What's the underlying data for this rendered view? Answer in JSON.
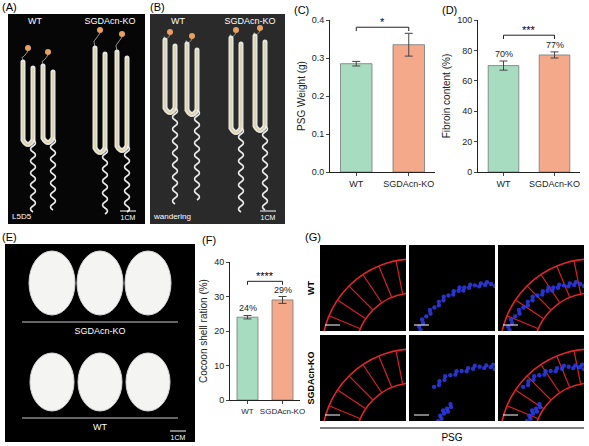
{
  "panels": {
    "A": {
      "label": "(A)",
      "columns": [
        "WT",
        "SGDAcn-KO"
      ],
      "stage": "L5D5",
      "scale": "1CM"
    },
    "B": {
      "label": "(B)",
      "columns": [
        "WT",
        "SGDAcn-KO"
      ],
      "stage": "wandering",
      "scale": "1CM"
    },
    "E": {
      "label": "(E)",
      "rows": [
        "SGDAcn-KO",
        "WT"
      ],
      "scale": "1CM"
    },
    "G": {
      "label": "(G)",
      "rows": [
        "WT",
        "SGDAcn-KO"
      ],
      "caption": "PSG"
    }
  },
  "chart_data": [
    {
      "type": "bar",
      "panel_label": "(C)",
      "ylabel": "PSG Weight (g)",
      "categories": [
        "WT",
        "SGDAcn-KO"
      ],
      "values": [
        0.285,
        0.335
      ],
      "errors": [
        0.006,
        0.03
      ],
      "colors": [
        "#a8dcc0",
        "#f4a98a"
      ],
      "ylim": [
        0,
        0.4
      ],
      "yticks": [
        {
          "value": 0,
          "label": "0.0"
        },
        0.1,
        0.2,
        0.3,
        0.4
      ],
      "significance": "*"
    },
    {
      "type": "bar",
      "panel_label": "(D)",
      "ylabel": "Fibroin content (%)",
      "categories": [
        "WT",
        "SGDAcn-KO"
      ],
      "values": [
        70,
        77
      ],
      "errors": [
        3,
        2
      ],
      "value_labels": [
        "70%",
        "77%"
      ],
      "data_labels": true,
      "colors": [
        "#a8dcc0",
        "#f4a98a"
      ],
      "ylim": [
        0,
        100
      ],
      "yticks": [
        0,
        20,
        40,
        60,
        80,
        100
      ],
      "significance": "***"
    },
    {
      "type": "bar",
      "panel_label": "(F)",
      "ylabel": "Cocoon shell ration (%)",
      "categories": [
        "WT",
        "SGDAcn-KO"
      ],
      "values": [
        24,
        29
      ],
      "errors": [
        0.5,
        1
      ],
      "value_labels": [
        "24%",
        "29%"
      ],
      "data_labels": true,
      "colors": [
        "#a8dcc0",
        "#f4a98a"
      ],
      "ylim": [
        0,
        40
      ],
      "yticks": [
        0,
        10,
        20,
        30,
        40
      ],
      "significance": "****"
    }
  ]
}
